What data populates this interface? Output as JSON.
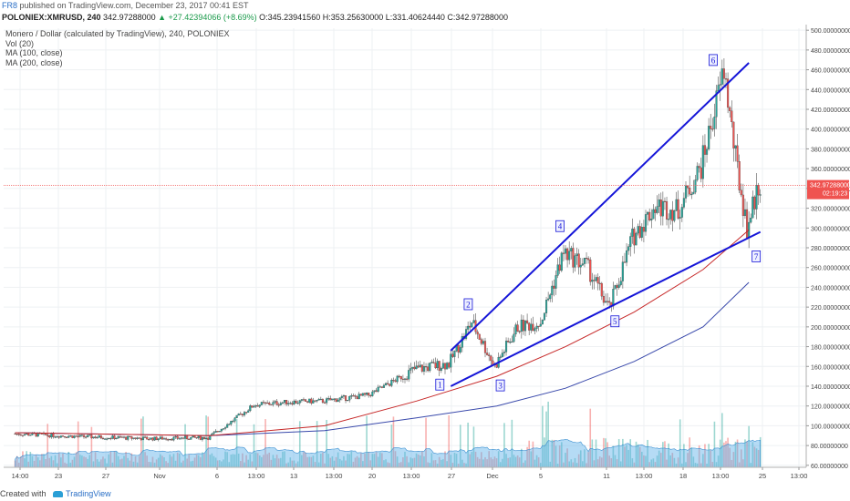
{
  "header": {
    "author": "FR8",
    "published": "published on TradingView.com, December 23, 2017 00:41 EST"
  },
  "symbol_line": {
    "symbol": "POLONIEX:XMRUSD, 240",
    "last": "342.97288000",
    "change": "▲ +27.42394066 (+8.69%)",
    "open": "O:345.23941560",
    "high": "H:353.25630000",
    "low": "L:331.40624440",
    "close": "C:342.97288000"
  },
  "legend": {
    "title": "Monero / Dollar (calculated by TradingView), 240, POLONIEX",
    "vol": "Vol (20)",
    "ma100": "MA (100, close)",
    "ma200": "MA (200, close)"
  },
  "price_tag": {
    "price": "342.97288000",
    "timer": "02:19:23"
  },
  "footer": {
    "created": "Created with",
    "brand": "TradingView"
  },
  "colors": {
    "up": "#26a69a",
    "down": "#ef5350",
    "candle_border": "#444444",
    "ma100": "#c62828",
    "ma200": "#3949ab",
    "trendline": "#1515d8",
    "volume_area": "#5ab0e8",
    "price_line": "#ef5350"
  },
  "chart_data": {
    "type": "candlestick",
    "y_ticks": [
      "500.00000000",
      "480.00000000",
      "460.00000000",
      "440.00000000",
      "420.00000000",
      "400.00000000",
      "380.00000000",
      "360.00000000",
      "340.00000000",
      "320.00000000",
      "300.00000000",
      "280.00000000",
      "260.00000000",
      "240.00000000",
      "220.00000000",
      "200.00000000",
      "180.00000000",
      "160.00000000",
      "140.00000000",
      "120.00000000",
      "100.00000000",
      "80.00000000",
      "60.00000000"
    ],
    "x_ticks": [
      "14:00",
      "23",
      "27",
      "Nov",
      "6",
      "13:00",
      "13",
      "13:00",
      "20",
      "13:00",
      "27",
      "Dec",
      "5",
      "11",
      "13:00",
      "18",
      "13:00",
      "25",
      "13:00"
    ],
    "ylim": [
      58,
      502
    ],
    "last_price": 342.97,
    "waves": [
      {
        "label": "1",
        "date": "2017-11-26",
        "price": 149
      },
      {
        "label": "2",
        "date": "2017-11-28",
        "price": 210
      },
      {
        "label": "3",
        "date": "2017-11-30",
        "price": 150
      },
      {
        "label": "4",
        "date": "2017-12-06",
        "price": 289
      },
      {
        "label": "5",
        "date": "2017-12-10",
        "price": 213
      },
      {
        "label": "6",
        "date": "2017-12-20",
        "price": 468
      },
      {
        "label": "7",
        "date": "2017-12-22",
        "price": 275
      }
    ],
    "price_series": [
      {
        "date": "2017-10-19",
        "price": 92
      },
      {
        "date": "2017-10-25",
        "price": 89
      },
      {
        "date": "2017-10-31",
        "price": 87
      },
      {
        "date": "2017-11-05",
        "price": 88
      },
      {
        "date": "2017-11-07",
        "price": 104
      },
      {
        "date": "2017-11-09",
        "price": 121
      },
      {
        "date": "2017-11-12",
        "price": 124
      },
      {
        "date": "2017-11-15",
        "price": 125
      },
      {
        "date": "2017-11-19",
        "price": 131
      },
      {
        "date": "2017-11-23",
        "price": 157
      },
      {
        "date": "2017-11-26",
        "price": 163
      },
      {
        "date": "2017-11-28",
        "price": 205
      },
      {
        "date": "2017-11-30",
        "price": 160
      },
      {
        "date": "2017-12-02",
        "price": 200
      },
      {
        "date": "2017-12-04",
        "price": 205
      },
      {
        "date": "2017-12-06",
        "price": 275
      },
      {
        "date": "2017-12-08",
        "price": 262
      },
      {
        "date": "2017-12-10",
        "price": 218
      },
      {
        "date": "2017-12-12",
        "price": 290
      },
      {
        "date": "2017-12-14",
        "price": 322
      },
      {
        "date": "2017-12-16",
        "price": 318
      },
      {
        "date": "2017-12-18",
        "price": 362
      },
      {
        "date": "2017-12-20",
        "price": 460
      },
      {
        "date": "2017-12-21",
        "price": 370
      },
      {
        "date": "2017-12-22",
        "price": 300
      },
      {
        "date": "2017-12-23",
        "price": 343
      }
    ],
    "ma100": [
      {
        "date": "2017-10-19",
        "price": 93
      },
      {
        "date": "2017-11-05",
        "price": 90
      },
      {
        "date": "2017-11-15",
        "price": 100
      },
      {
        "date": "2017-11-23",
        "price": 125
      },
      {
        "date": "2017-11-30",
        "price": 150
      },
      {
        "date": "2017-12-06",
        "price": 180
      },
      {
        "date": "2017-12-12",
        "price": 215
      },
      {
        "date": "2017-12-18",
        "price": 258
      },
      {
        "date": "2017-12-22",
        "price": 298
      }
    ],
    "ma200": [
      {
        "date": "2017-10-19",
        "price": 93
      },
      {
        "date": "2017-11-05",
        "price": 90
      },
      {
        "date": "2017-11-15",
        "price": 95
      },
      {
        "date": "2017-11-23",
        "price": 108
      },
      {
        "date": "2017-11-30",
        "price": 120
      },
      {
        "date": "2017-12-06",
        "price": 138
      },
      {
        "date": "2017-12-12",
        "price": 165
      },
      {
        "date": "2017-12-18",
        "price": 200
      },
      {
        "date": "2017-12-22",
        "price": 245
      }
    ],
    "trendlines": [
      {
        "from": {
          "date": "2017-11-26",
          "price": 176
        },
        "to": {
          "date": "2017-12-22",
          "price": 467
        }
      },
      {
        "from": {
          "date": "2017-11-26",
          "price": 140
        },
        "to": {
          "date": "2017-12-23",
          "price": 296
        }
      }
    ]
  }
}
